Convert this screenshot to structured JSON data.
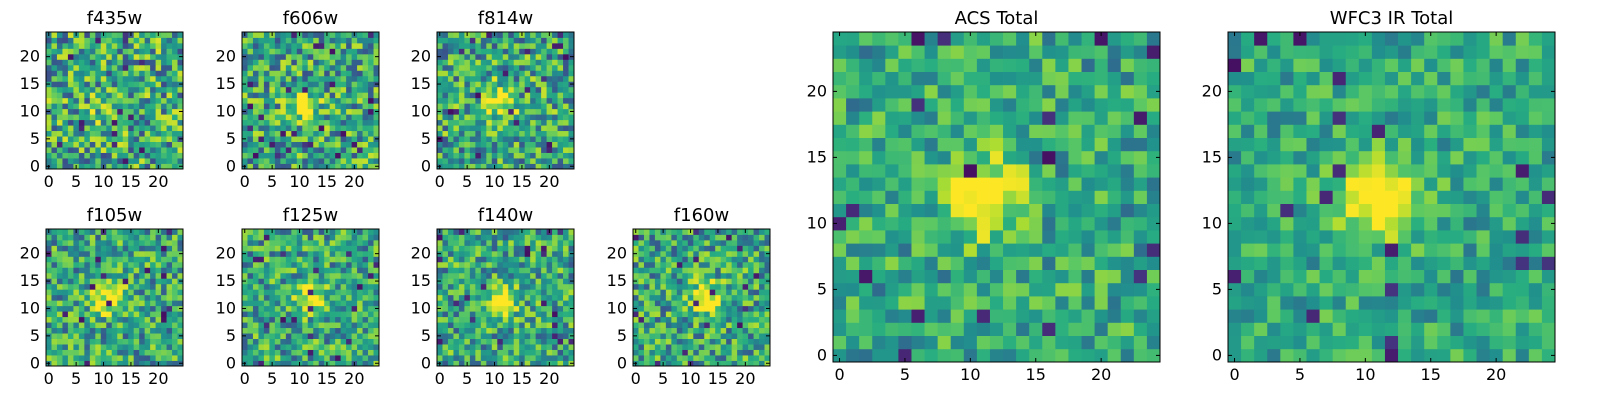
{
  "colormap": "viridis",
  "colors": {
    "dark": "#440154",
    "mid": "#21908d",
    "bright": "#fde725",
    "axis": "#000000"
  },
  "chart_data": [
    {
      "id": "f435w",
      "type": "heatmap",
      "title": "f435w",
      "xlim": [
        0,
        24
      ],
      "ylim": [
        0,
        24
      ],
      "xticks": [
        "0",
        "5",
        "10",
        "15",
        "20"
      ],
      "yticks": [
        "0",
        "5",
        "10",
        "15",
        "20"
      ],
      "source_peak": [
        10,
        11
      ],
      "peak_strength": 0.1,
      "noise": 0.55,
      "seed": 11
    },
    {
      "id": "f606w",
      "type": "heatmap",
      "title": "f606w",
      "xlim": [
        0,
        24
      ],
      "ylim": [
        0,
        24
      ],
      "xticks": [
        "0",
        "5",
        "10",
        "15",
        "20"
      ],
      "yticks": [
        "0",
        "5",
        "10",
        "15",
        "20"
      ],
      "source_peak": [
        11,
        11
      ],
      "peak_strength": 0.35,
      "noise": 0.5,
      "seed": 22
    },
    {
      "id": "f814w",
      "type": "heatmap",
      "title": "f814w",
      "xlim": [
        0,
        24
      ],
      "ylim": [
        0,
        24
      ],
      "xticks": [
        "0",
        "5",
        "10",
        "15",
        "20"
      ],
      "yticks": [
        "0",
        "5",
        "10",
        "15",
        "20"
      ],
      "source_peak": [
        11,
        12
      ],
      "peak_strength": 0.4,
      "noise": 0.5,
      "seed": 33
    },
    {
      "id": "f105w",
      "type": "heatmap",
      "title": "f105w",
      "xlim": [
        0,
        24
      ],
      "ylim": [
        0,
        24
      ],
      "xticks": [
        "0",
        "5",
        "10",
        "15",
        "20"
      ],
      "yticks": [
        "0",
        "5",
        "10",
        "15",
        "20"
      ],
      "source_peak": [
        11,
        12
      ],
      "peak_strength": 0.45,
      "noise": 0.45,
      "seed": 44
    },
    {
      "id": "f125w",
      "type": "heatmap",
      "title": "f125w",
      "xlim": [
        0,
        24
      ],
      "ylim": [
        0,
        24
      ],
      "xticks": [
        "0",
        "5",
        "10",
        "15",
        "20"
      ],
      "yticks": [
        "0",
        "5",
        "10",
        "15",
        "20"
      ],
      "source_peak": [
        12,
        12
      ],
      "peak_strength": 0.4,
      "noise": 0.45,
      "seed": 55
    },
    {
      "id": "f140w",
      "type": "heatmap",
      "title": "f140w",
      "xlim": [
        0,
        24
      ],
      "ylim": [
        0,
        24
      ],
      "xticks": [
        "0",
        "5",
        "10",
        "15",
        "20"
      ],
      "yticks": [
        "0",
        "5",
        "10",
        "15",
        "20"
      ],
      "source_peak": [
        11,
        11
      ],
      "peak_strength": 0.45,
      "noise": 0.45,
      "seed": 66
    },
    {
      "id": "f160w",
      "type": "heatmap",
      "title": "f160w",
      "xlim": [
        0,
        24
      ],
      "ylim": [
        0,
        24
      ],
      "xticks": [
        "0",
        "5",
        "10",
        "15",
        "20"
      ],
      "yticks": [
        "0",
        "5",
        "10",
        "15",
        "20"
      ],
      "source_peak": [
        13,
        12
      ],
      "peak_strength": 0.45,
      "noise": 0.45,
      "seed": 77
    },
    {
      "id": "acs-total",
      "type": "heatmap",
      "title": "ACS Total",
      "xlim": [
        0,
        24
      ],
      "ylim": [
        0,
        24
      ],
      "xticks": [
        "0",
        "5",
        "10",
        "15",
        "20"
      ],
      "yticks": [
        "0",
        "5",
        "10",
        "15",
        "20"
      ],
      "source_peak": [
        11,
        12
      ],
      "peak_strength": 0.55,
      "noise": 0.35,
      "seed": 88
    },
    {
      "id": "wfc3-ir-total",
      "type": "heatmap",
      "title": "WFC3 IR Total",
      "xlim": [
        0,
        24
      ],
      "ylim": [
        0,
        24
      ],
      "xticks": [
        "0",
        "5",
        "10",
        "15",
        "20"
      ],
      "yticks": [
        "0",
        "5",
        "10",
        "15",
        "20"
      ],
      "source_peak": [
        11,
        12
      ],
      "peak_strength": 0.6,
      "noise": 0.3,
      "seed": 99
    }
  ]
}
